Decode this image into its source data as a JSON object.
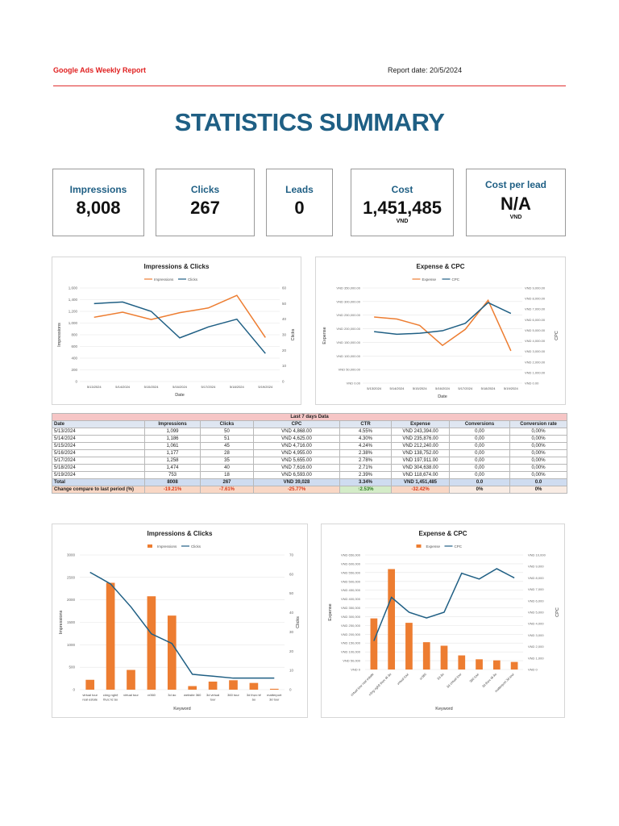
{
  "header": {
    "report_title": "Google Ads Weekly Report",
    "report_date": "Report date: 20/5/2024"
  },
  "page_title": "STATISTICS SUMMARY",
  "kpis": [
    {
      "label": "Impressions",
      "value": "8,008",
      "unit": ""
    },
    {
      "label": "Clicks",
      "value": "267",
      "unit": ""
    },
    {
      "label": "Leads",
      "value": "0",
      "unit": ""
    },
    {
      "label": "Cost",
      "value": "1,451,485",
      "unit": "VND"
    },
    {
      "label": "Cost per lead",
      "value": "N/A",
      "unit": "VND"
    }
  ],
  "colors": {
    "orange": "#ed7d31",
    "blue": "#1f5f84",
    "accent_red": "#e02020",
    "title_blue": "#1f5f84"
  },
  "table": {
    "title": "Last 7 days Data",
    "headers": [
      "Date",
      "Impressions",
      "Clicks",
      "CPC",
      "CTR",
      "Expense",
      "Conversions",
      "Conversion rate"
    ],
    "rows": [
      [
        "5/13/2024",
        "1,099",
        "50",
        "VND 4,868.00",
        "4.55%",
        "VND 243,394.00",
        "0,00",
        "0,00%"
      ],
      [
        "5/14/2024",
        "1,186",
        "51",
        "VND 4,625.00",
        "4.30%",
        "VND 235,876.00",
        "0,00",
        "0,00%"
      ],
      [
        "5/15/2024",
        "1,061",
        "45",
        "VND 4,716.00",
        "4.24%",
        "VND 212,240.00",
        "0,00",
        "0,00%"
      ],
      [
        "5/16/2024",
        "1,177",
        "28",
        "VND 4,955.00",
        "2.38%",
        "VND 138,752.00",
        "0,00",
        "0,00%"
      ],
      [
        "5/17/2024",
        "1,258",
        "35",
        "VND 5,655.00",
        "2.78%",
        "VND 197,911.00",
        "0,00",
        "0,00%"
      ],
      [
        "5/18/2024",
        "1,474",
        "40",
        "VND 7,616.00",
        "2.71%",
        "VND 304,638.00",
        "0,00",
        "0,00%"
      ],
      [
        "5/19/2024",
        "753",
        "18",
        "VND 6,593.00",
        "2.39%",
        "VND 118,674.00",
        "0,00",
        "0,00%"
      ]
    ],
    "total": [
      "Total",
      "8008",
      "267",
      "VND 39,028",
      "3.34%",
      "VND 1,451,485",
      "0.0",
      "0.0"
    ],
    "change": [
      "Change compare to last period (%)",
      "-19.21%",
      "-7.61%",
      "-25.77%",
      "↑2.53%",
      "-32.42%",
      "0%",
      "0%"
    ]
  },
  "chart_data": [
    {
      "type": "line",
      "title": "Impressions & Clicks",
      "xlabel": "Date",
      "ylabel": "Impressions",
      "y2label": "Clicks",
      "categories": [
        "5/13/2024",
        "5/14/2024",
        "5/15/2024",
        "5/16/2024",
        "5/17/2024",
        "5/18/2024",
        "5/19/2024"
      ],
      "series": [
        {
          "name": "Impressions",
          "axis": "left",
          "values": [
            1099,
            1186,
            1061,
            1177,
            1258,
            1474,
            753
          ]
        },
        {
          "name": "Clicks",
          "axis": "right",
          "values": [
            50,
            51,
            45,
            28,
            35,
            40,
            18
          ]
        }
      ],
      "ylim": [
        0,
        1600
      ],
      "y2lim": [
        0,
        60
      ],
      "yticks": [
        "0",
        "200",
        "400",
        "600",
        "800",
        "1,000",
        "1,200",
        "1,400",
        "1,600"
      ],
      "y2ticks": [
        "0",
        "10",
        "20",
        "30",
        "40",
        "50",
        "60"
      ],
      "legend": "top"
    },
    {
      "type": "line",
      "title": "Expense & CPC",
      "xlabel": "Date",
      "ylabel": "Expense",
      "y2label": "CPC",
      "categories": [
        "5/13/2024",
        "5/14/2024",
        "5/15/2024",
        "5/16/2024",
        "5/17/2024",
        "5/18/2024",
        "5/19/2024"
      ],
      "series": [
        {
          "name": "Expense",
          "axis": "left",
          "values": [
            243394,
            235876,
            212240,
            138752,
            197911,
            304638,
            118674
          ]
        },
        {
          "name": "CPC",
          "axis": "right",
          "values": [
            4868,
            4625,
            4716,
            4955,
            5655,
            7616,
            6593
          ]
        }
      ],
      "ylim": [
        0,
        350000
      ],
      "y2lim": [
        0,
        9000
      ],
      "yticks": [
        "VND 0.00",
        "VND 50,000.00",
        "VND 100,000.00",
        "VND 150,000.00",
        "VND 200,000.00",
        "VND 250,000.00",
        "VND 300,000.00",
        "VND 350,000.00"
      ],
      "y2ticks": [
        "VND 0.00",
        "VND 1,000.00",
        "VND 2,000.00",
        "VND 3,000.00",
        "VND 4,000.00",
        "VND 5,000.00",
        "VND 6,000.00",
        "VND 7,000.00",
        "VND 8,000.00",
        "VND 9,000.00"
      ],
      "legend": "top"
    },
    {
      "type": "bar",
      "title": "Impressions & Clicks",
      "xlabel": "Keyword",
      "ylabel": "Impressions",
      "y2label": "Clicks",
      "categories": [
        "virtual tour real estate",
        "công nghệ thực tế ảo",
        "virtual tour",
        "vr360",
        "3d ảo",
        "website 360",
        "3d virtual tour",
        "360 tour",
        "3d thực tế ảo",
        "matterport 3d tour"
      ],
      "series": [
        {
          "name": "Impressions",
          "kind": "bar",
          "axis": "left",
          "values": [
            220,
            2380,
            440,
            2080,
            1650,
            80,
            180,
            210,
            150,
            20
          ]
        },
        {
          "name": "Clicks",
          "kind": "line",
          "axis": "right",
          "values": [
            61,
            55,
            43,
            29,
            24,
            8,
            7,
            6,
            6,
            6
          ]
        }
      ],
      "ylim": [
        0,
        3000
      ],
      "y2lim": [
        0,
        70
      ],
      "yticks": [
        "0",
        "500",
        "1000",
        "1500",
        "2000",
        "2500",
        "3000"
      ],
      "y2ticks": [
        "0",
        "10",
        "20",
        "30",
        "40",
        "50",
        "60",
        "70"
      ],
      "legend": "top"
    },
    {
      "type": "bar",
      "title": "Expense & CPC",
      "xlabel": "Keyword",
      "ylabel": "Expense",
      "y2label": "CPC",
      "categories": [
        "virtual tour real estate",
        "công nghệ thực tế ảo",
        "virtual tour",
        "vr360",
        "3d ảo",
        "3d virtual tour",
        "360 tour",
        "3d thực tế ảo",
        "matterport 3d tour"
      ],
      "series": [
        {
          "name": "Expense",
          "kind": "bar",
          "axis": "left",
          "values": [
            290000,
            570000,
            265000,
            155000,
            135000,
            80000,
            58000,
            52000,
            43000
          ]
        },
        {
          "name": "CPC",
          "kind": "line",
          "axis": "right",
          "values": [
            2500,
            6300,
            5000,
            4500,
            5000,
            8400,
            7900,
            8800,
            8000
          ]
        }
      ],
      "ylim": [
        0,
        650000
      ],
      "y2lim": [
        0,
        10000
      ],
      "yticks": [
        "VND 0",
        "VND 50,000",
        "VND 100,000",
        "VND 150,000",
        "VND 200,000",
        "VND 250,000",
        "VND 300,000",
        "VND 350,000",
        "VND 400,000",
        "VND 450,000",
        "VND 500,000",
        "VND 550,000",
        "VND 600,000",
        "VND 650,000"
      ],
      "y2ticks": [
        "VND 0",
        "VND 1,000",
        "VND 2,000",
        "VND 3,000",
        "VND 4,000",
        "VND 5,000",
        "VND 6,000",
        "VND 7,000",
        "VND 8,000",
        "VND 9,000",
        "VND 10,000"
      ],
      "legend": "top"
    }
  ]
}
